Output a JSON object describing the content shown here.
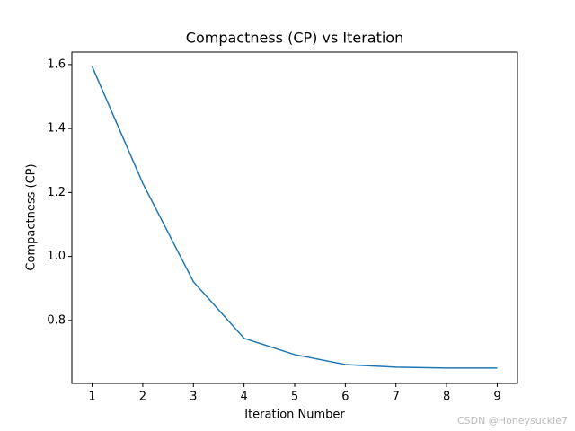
{
  "chart_data": {
    "type": "line",
    "title": "Compactness (CP) vs Iteration",
    "x_label": "Iteration Number",
    "y_label": "Compactness (CP)",
    "x": [
      1,
      2,
      3,
      4,
      5,
      6,
      7,
      8,
      9
    ],
    "series": [
      {
        "name": "Compactness (CP)",
        "color": "#1f77b4",
        "values": [
          1.594,
          1.229,
          0.921,
          0.744,
          0.693,
          0.662,
          0.654,
          0.651,
          0.651
        ]
      }
    ],
    "xlim": [
      0.6,
      9.4
    ],
    "xticks": [
      1,
      2,
      3,
      4,
      5,
      6,
      7,
      8,
      9
    ],
    "ylim": [
      0.603,
      1.639
    ],
    "yticks": [
      0.8,
      {
        "value": 1,
        "label": "1.0"
      },
      1.2,
      1.4,
      1.6
    ],
    "grid": false,
    "legend": false,
    "watermark": "CSDN @Honeysuckle7"
  }
}
